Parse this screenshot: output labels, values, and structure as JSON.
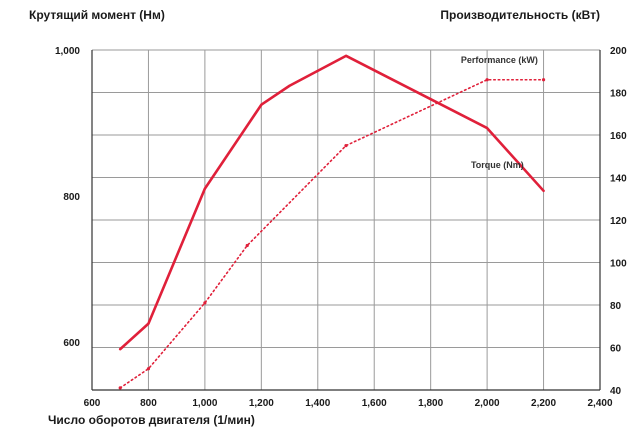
{
  "chart_data": {
    "type": "line",
    "title": "",
    "ylabel_left": "Крутящий момент (Нм)",
    "ylabel_right": "Производительность (кВт)",
    "xlabel": "Число оборотов двигателя (1/мин)",
    "x_ticks": [
      "600",
      "800",
      "1,000",
      "1,200",
      "1,400",
      "1,600",
      "1,800",
      "2,000",
      "2,200",
      "2,400"
    ],
    "y_left_ticks": [
      "600",
      "800",
      "1,000"
    ],
    "y_right_ticks": [
      "40",
      "60",
      "80",
      "100",
      "120",
      "140",
      "160",
      "180",
      "200"
    ],
    "xlim": [
      600,
      2400
    ],
    "ylim_left": [
      534,
      1000
    ],
    "ylim_right": [
      40,
      200
    ],
    "grid": true,
    "series": [
      {
        "name": "Torque (Nm)",
        "axis": "left",
        "style": "solid",
        "color": "#e0203a",
        "x": [
          700,
          800,
          1000,
          1200,
          1300,
          1500,
          2000,
          2200
        ],
        "y": [
          590,
          625,
          810,
          925,
          951,
          992,
          893,
          807
        ]
      },
      {
        "name": "Performance (kW)",
        "axis": "right",
        "style": "dotted",
        "color": "#e0203a",
        "x": [
          700,
          800,
          1000,
          1150,
          1500,
          2000,
          2200
        ],
        "y": [
          41,
          50,
          81,
          108,
          155,
          186,
          186
        ]
      }
    ]
  }
}
